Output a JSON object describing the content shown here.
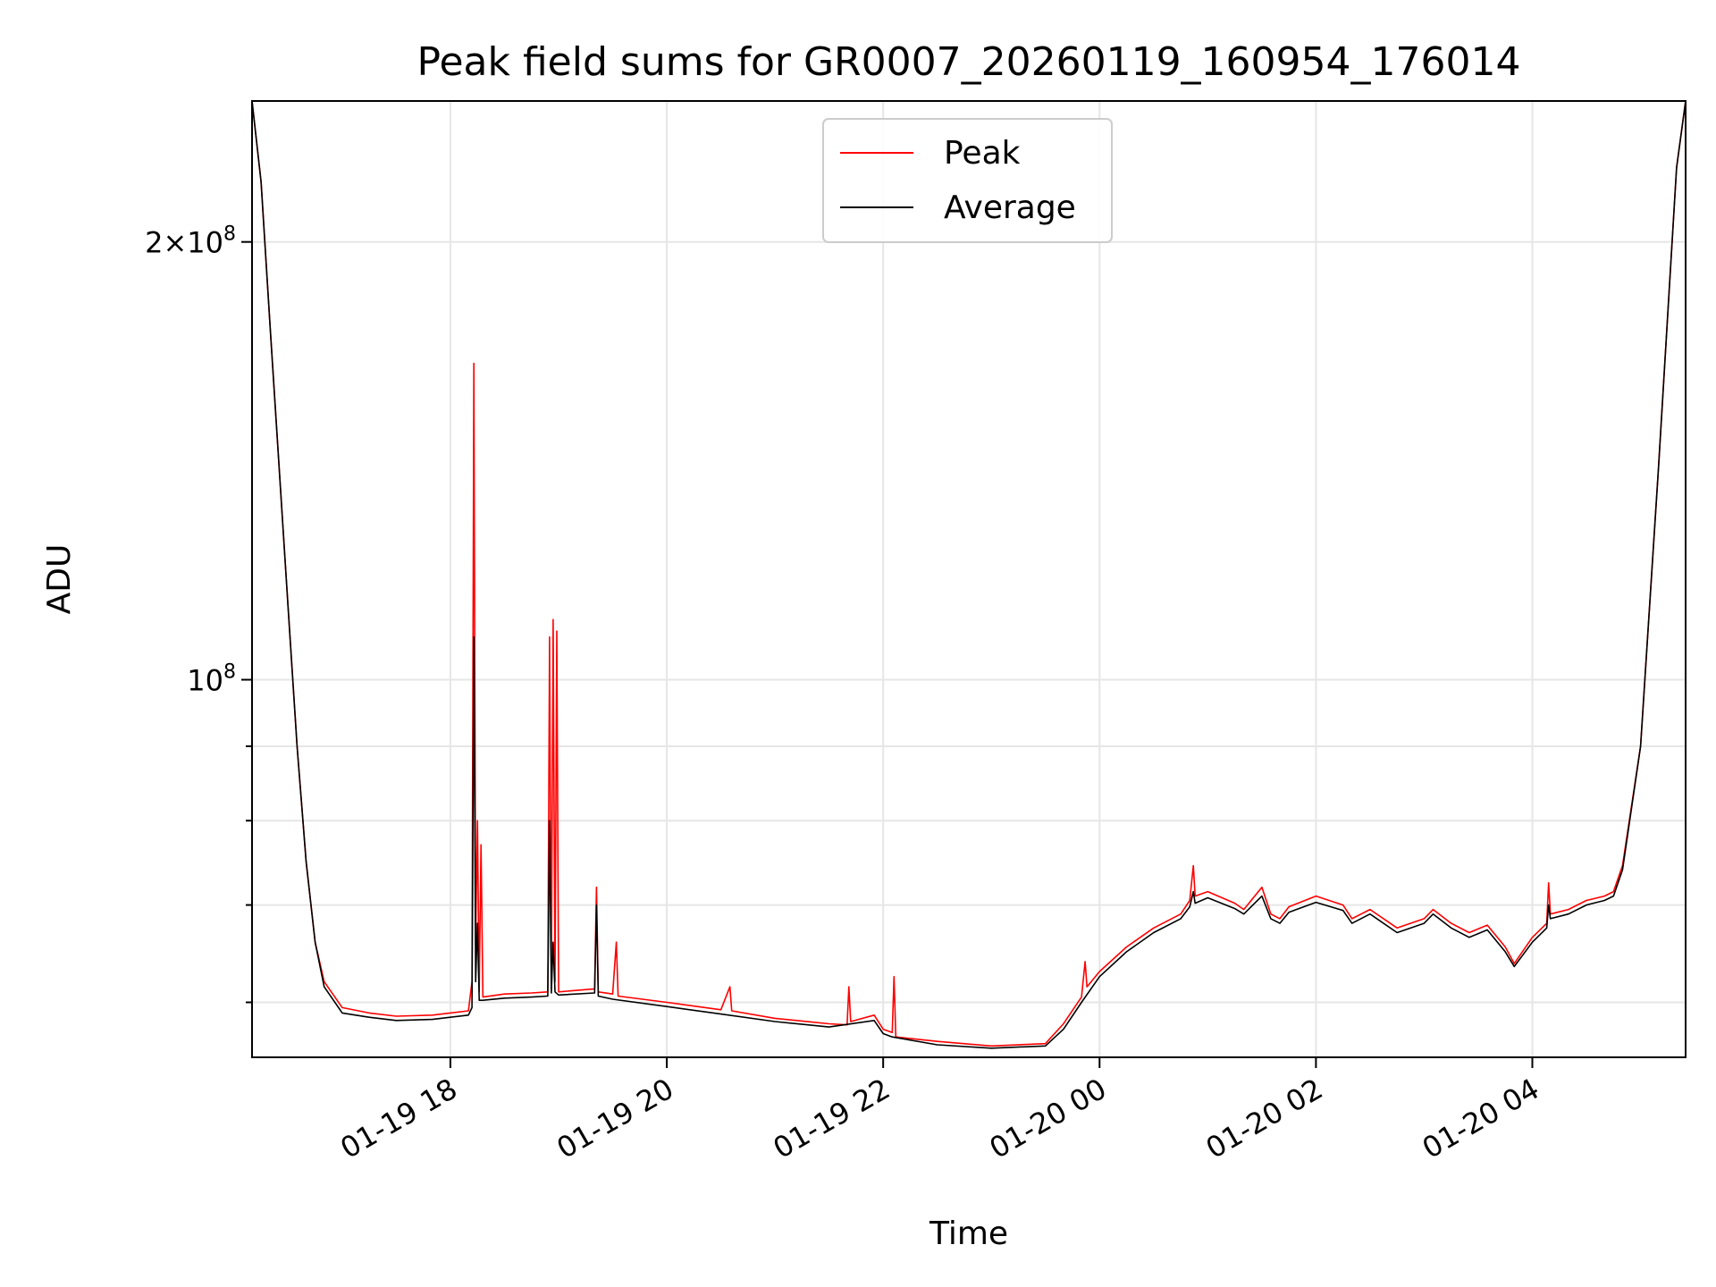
{
  "chart_data": {
    "type": "line",
    "title": "Peak field sums for GR0007_20260119_160954_176014",
    "xlabel": "Time",
    "ylabel": "ADU",
    "y_scale": "log",
    "ylim": [
      55000000,
      250000000
    ],
    "xlim": [
      "2026-01-19 16:10",
      "2026-01-20 05:25"
    ],
    "grid": true,
    "legend_position": "upper center",
    "x_ticks": [
      {
        "t": "2026-01-19 18:00",
        "label": "01-19 18"
      },
      {
        "t": "2026-01-19 20:00",
        "label": "01-19 20"
      },
      {
        "t": "2026-01-19 22:00",
        "label": "01-19 22"
      },
      {
        "t": "2026-01-20 00:00",
        "label": "01-20 00"
      },
      {
        "t": "2026-01-20 02:00",
        "label": "01-20 02"
      },
      {
        "t": "2026-01-20 04:00",
        "label": "01-20 04"
      }
    ],
    "y_ticks_labeled": [
      {
        "value": 100000000,
        "base": "10",
        "exp": "8",
        "mantissa": ""
      },
      {
        "value": 200000000,
        "base": "10",
        "exp": "8",
        "mantissa": "2×"
      }
    ],
    "y_ticks_minor": [
      60000000,
      70000000,
      80000000,
      90000000
    ],
    "series": [
      {
        "name": "Peak",
        "color": "#ff0000",
        "points": [
          [
            "2026-01-19 16:10",
            250000000
          ],
          [
            "2026-01-19 16:15",
            220000000
          ],
          [
            "2026-01-19 16:20",
            175000000
          ],
          [
            "2026-01-19 16:25",
            140000000
          ],
          [
            "2026-01-19 16:30",
            112000000
          ],
          [
            "2026-01-19 16:35",
            90000000
          ],
          [
            "2026-01-19 16:40",
            75000000
          ],
          [
            "2026-01-19 16:45",
            66000000
          ],
          [
            "2026-01-19 16:50",
            62000000
          ],
          [
            "2026-01-19 17:00",
            59500000
          ],
          [
            "2026-01-19 17:15",
            59000000
          ],
          [
            "2026-01-19 17:30",
            58700000
          ],
          [
            "2026-01-19 17:50",
            58800000
          ],
          [
            "2026-01-19 18:10",
            59200000
          ],
          [
            "2026-01-19 18:12",
            62000000
          ],
          [
            "2026-01-19 18:13",
            165000000
          ],
          [
            "2026-01-19 18:14",
            66000000
          ],
          [
            "2026-01-19 18:15",
            80000000
          ],
          [
            "2026-01-19 18:16",
            61000000
          ],
          [
            "2026-01-19 18:17",
            77000000
          ],
          [
            "2026-01-19 18:18",
            60500000
          ],
          [
            "2026-01-19 18:30",
            60800000
          ],
          [
            "2026-01-19 18:45",
            60900000
          ],
          [
            "2026-01-19 18:54",
            61000000
          ],
          [
            "2026-01-19 18:55",
            107000000
          ],
          [
            "2026-01-19 18:56",
            61500000
          ],
          [
            "2026-01-19 18:57",
            110000000
          ],
          [
            "2026-01-19 18:58",
            62000000
          ],
          [
            "2026-01-19 18:59",
            108000000
          ],
          [
            "2026-01-19 19:00",
            61000000
          ],
          [
            "2026-01-19 19:20",
            61300000
          ],
          [
            "2026-01-19 19:21",
            72000000
          ],
          [
            "2026-01-19 19:22",
            61000000
          ],
          [
            "2026-01-19 19:30",
            60800000
          ],
          [
            "2026-01-19 19:32",
            66000000
          ],
          [
            "2026-01-19 19:33",
            60600000
          ],
          [
            "2026-01-19 20:00",
            60000000
          ],
          [
            "2026-01-19 20:30",
            59300000
          ],
          [
            "2026-01-19 20:35",
            61500000
          ],
          [
            "2026-01-19 20:36",
            59200000
          ],
          [
            "2026-01-19 21:00",
            58500000
          ],
          [
            "2026-01-19 21:30",
            58000000
          ],
          [
            "2026-01-19 21:40",
            57900000
          ],
          [
            "2026-01-19 21:41",
            61500000
          ],
          [
            "2026-01-19 21:42",
            58200000
          ],
          [
            "2026-01-19 21:55",
            58800000
          ],
          [
            "2026-01-19 22:00",
            57500000
          ],
          [
            "2026-01-19 22:05",
            57200000
          ],
          [
            "2026-01-19 22:06",
            62500000
          ],
          [
            "2026-01-19 22:07",
            56800000
          ],
          [
            "2026-01-19 22:30",
            56400000
          ],
          [
            "2026-01-19 23:00",
            56000000
          ],
          [
            "2026-01-19 23:30",
            56200000
          ],
          [
            "2026-01-19 23:40",
            58000000
          ],
          [
            "2026-01-19 23:50",
            60500000
          ],
          [
            "2026-01-19 23:52",
            64000000
          ],
          [
            "2026-01-19 23:53",
            61500000
          ],
          [
            "2026-01-20 00:00",
            63000000
          ],
          [
            "2026-01-20 00:15",
            65500000
          ],
          [
            "2026-01-20 00:30",
            67500000
          ],
          [
            "2026-01-20 00:45",
            69000000
          ],
          [
            "2026-01-20 00:50",
            70500000
          ],
          [
            "2026-01-20 00:52",
            74500000
          ],
          [
            "2026-01-20 00:53",
            71000000
          ],
          [
            "2026-01-20 01:00",
            71500000
          ],
          [
            "2026-01-20 01:15",
            70200000
          ],
          [
            "2026-01-20 01:20",
            69500000
          ],
          [
            "2026-01-20 01:30",
            72000000
          ],
          [
            "2026-01-20 01:35",
            69000000
          ],
          [
            "2026-01-20 01:40",
            68500000
          ],
          [
            "2026-01-20 01:45",
            69800000
          ],
          [
            "2026-01-20 02:00",
            71000000
          ],
          [
            "2026-01-20 02:15",
            70000000
          ],
          [
            "2026-01-20 02:20",
            68500000
          ],
          [
            "2026-01-20 02:30",
            69500000
          ],
          [
            "2026-01-20 02:45",
            67500000
          ],
          [
            "2026-01-20 03:00",
            68500000
          ],
          [
            "2026-01-20 03:05",
            69500000
          ],
          [
            "2026-01-20 03:15",
            68000000
          ],
          [
            "2026-01-20 03:25",
            67000000
          ],
          [
            "2026-01-20 03:35",
            67800000
          ],
          [
            "2026-01-20 03:45",
            65500000
          ],
          [
            "2026-01-20 03:50",
            63800000
          ],
          [
            "2026-01-20 04:00",
            66500000
          ],
          [
            "2026-01-20 04:08",
            68000000
          ],
          [
            "2026-01-20 04:09",
            72500000
          ],
          [
            "2026-01-20 04:10",
            69000000
          ],
          [
            "2026-01-20 04:20",
            69500000
          ],
          [
            "2026-01-20 04:30",
            70500000
          ],
          [
            "2026-01-20 04:40",
            71000000
          ],
          [
            "2026-01-20 04:45",
            71500000
          ],
          [
            "2026-01-20 04:50",
            74500000
          ],
          [
            "2026-01-20 05:00",
            90000000
          ],
          [
            "2026-01-20 05:10",
            140000000
          ],
          [
            "2026-01-20 05:20",
            225000000
          ],
          [
            "2026-01-20 05:25",
            250000000
          ]
        ]
      },
      {
        "name": "Average",
        "color": "#000000",
        "points": [
          [
            "2026-01-19 16:10",
            250000000
          ],
          [
            "2026-01-19 16:15",
            220000000
          ],
          [
            "2026-01-19 16:20",
            175000000
          ],
          [
            "2026-01-19 16:25",
            140000000
          ],
          [
            "2026-01-19 16:30",
            112000000
          ],
          [
            "2026-01-19 16:35",
            90000000
          ],
          [
            "2026-01-19 16:40",
            75000000
          ],
          [
            "2026-01-19 16:45",
            66000000
          ],
          [
            "2026-01-19 16:50",
            61500000
          ],
          [
            "2026-01-19 17:00",
            59000000
          ],
          [
            "2026-01-19 17:15",
            58600000
          ],
          [
            "2026-01-19 17:30",
            58300000
          ],
          [
            "2026-01-19 17:50",
            58400000
          ],
          [
            "2026-01-19 18:10",
            58800000
          ],
          [
            "2026-01-19 18:12",
            59500000
          ],
          [
            "2026-01-19 18:13",
            107000000
          ],
          [
            "2026-01-19 18:14",
            62000000
          ],
          [
            "2026-01-19 18:15",
            68000000
          ],
          [
            "2026-01-19 18:16",
            60200000
          ],
          [
            "2026-01-19 18:18",
            60200000
          ],
          [
            "2026-01-19 18:30",
            60400000
          ],
          [
            "2026-01-19 18:45",
            60500000
          ],
          [
            "2026-01-19 18:54",
            60600000
          ],
          [
            "2026-01-19 18:55",
            80000000
          ],
          [
            "2026-01-19 18:56",
            60900000
          ],
          [
            "2026-01-19 18:57",
            66000000
          ],
          [
            "2026-01-19 18:58",
            61000000
          ],
          [
            "2026-01-19 19:00",
            60700000
          ],
          [
            "2026-01-19 19:20",
            60900000
          ],
          [
            "2026-01-19 19:21",
            70000000
          ],
          [
            "2026-01-19 19:22",
            60600000
          ],
          [
            "2026-01-19 19:30",
            60300000
          ],
          [
            "2026-01-19 20:00",
            59600000
          ],
          [
            "2026-01-19 20:30",
            58900000
          ],
          [
            "2026-01-19 21:00",
            58200000
          ],
          [
            "2026-01-19 21:30",
            57700000
          ],
          [
            "2026-01-19 21:55",
            58300000
          ],
          [
            "2026-01-19 22:00",
            57100000
          ],
          [
            "2026-01-19 22:05",
            56800000
          ],
          [
            "2026-01-19 22:30",
            56100000
          ],
          [
            "2026-01-19 23:00",
            55800000
          ],
          [
            "2026-01-19 23:30",
            56000000
          ],
          [
            "2026-01-19 23:40",
            57500000
          ],
          [
            "2026-01-19 23:50",
            60000000
          ],
          [
            "2026-01-20 00:00",
            62500000
          ],
          [
            "2026-01-20 00:15",
            65000000
          ],
          [
            "2026-01-20 00:30",
            67000000
          ],
          [
            "2026-01-20 00:45",
            68500000
          ],
          [
            "2026-01-20 00:50",
            69800000
          ],
          [
            "2026-01-20 00:52",
            71500000
          ],
          [
            "2026-01-20 00:53",
            70200000
          ],
          [
            "2026-01-20 01:00",
            70800000
          ],
          [
            "2026-01-20 01:15",
            69600000
          ],
          [
            "2026-01-20 01:20",
            69000000
          ],
          [
            "2026-01-20 01:30",
            71000000
          ],
          [
            "2026-01-20 01:35",
            68500000
          ],
          [
            "2026-01-20 01:40",
            68000000
          ],
          [
            "2026-01-20 01:45",
            69200000
          ],
          [
            "2026-01-20 02:00",
            70300000
          ],
          [
            "2026-01-20 02:15",
            69400000
          ],
          [
            "2026-01-20 02:20",
            68000000
          ],
          [
            "2026-01-20 02:30",
            69000000
          ],
          [
            "2026-01-20 02:45",
            67000000
          ],
          [
            "2026-01-20 03:00",
            68000000
          ],
          [
            "2026-01-20 03:05",
            69000000
          ],
          [
            "2026-01-20 03:15",
            67500000
          ],
          [
            "2026-01-20 03:25",
            66500000
          ],
          [
            "2026-01-20 03:35",
            67300000
          ],
          [
            "2026-01-20 03:45",
            65000000
          ],
          [
            "2026-01-20 03:50",
            63500000
          ],
          [
            "2026-01-20 04:00",
            66000000
          ],
          [
            "2026-01-20 04:08",
            67500000
          ],
          [
            "2026-01-20 04:09",
            70000000
          ],
          [
            "2026-01-20 04:10",
            68500000
          ],
          [
            "2026-01-20 04:20",
            69000000
          ],
          [
            "2026-01-20 04:30",
            70000000
          ],
          [
            "2026-01-20 04:40",
            70500000
          ],
          [
            "2026-01-20 04:45",
            71000000
          ],
          [
            "2026-01-20 04:50",
            74000000
          ],
          [
            "2026-01-20 05:00",
            90000000
          ],
          [
            "2026-01-20 05:10",
            140000000
          ],
          [
            "2026-01-20 05:20",
            225000000
          ],
          [
            "2026-01-20 05:25",
            250000000
          ]
        ]
      }
    ]
  }
}
